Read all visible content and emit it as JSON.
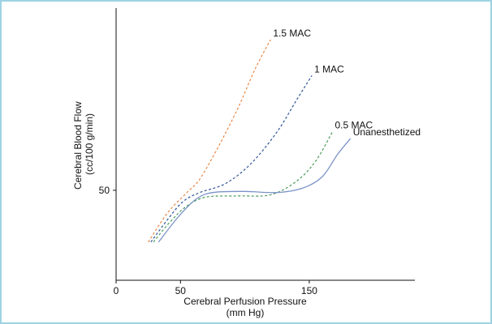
{
  "chart_data": {
    "type": "line",
    "title": "",
    "xlabel": "Cerebral Perfusion Pressure",
    "xlabel_units": "(mm Hg)",
    "ylabel": "Cerebral Blood Flow",
    "ylabel_units": "(cc/100 g/min)",
    "xlim": [
      0,
      232
    ],
    "ylim": [
      10,
      131
    ],
    "x_ticks": [
      0,
      50,
      150
    ],
    "x_tick_labels": [
      "0",
      "50",
      "150"
    ],
    "y_ticks": [
      50
    ],
    "y_tick_labels": [
      "50"
    ],
    "grid": false,
    "legend": "inline labels at line ends",
    "series": [
      {
        "name": "1.5 MAC",
        "color": "#e8874a",
        "dash": "dashed",
        "points": [
          [
            25,
            27
          ],
          [
            40,
            40
          ],
          [
            55,
            49
          ],
          [
            65,
            55
          ],
          [
            80,
            70
          ],
          [
            95,
            87
          ],
          [
            108,
            104
          ],
          [
            120,
            117
          ]
        ]
      },
      {
        "name": "1 MAC",
        "color": "#2f5597",
        "dash": "dashed",
        "points": [
          [
            27,
            27
          ],
          [
            40,
            37
          ],
          [
            52,
            45
          ],
          [
            65,
            49
          ],
          [
            85,
            53
          ],
          [
            105,
            62
          ],
          [
            125,
            76
          ],
          [
            140,
            90
          ],
          [
            152,
            101
          ]
        ]
      },
      {
        "name": "0.5 MAC",
        "color": "#4a9a5a",
        "dash": "dashed",
        "points": [
          [
            29,
            27
          ],
          [
            42,
            36
          ],
          [
            55,
            43
          ],
          [
            70,
            47
          ],
          [
            95,
            47.5
          ],
          [
            120,
            48
          ],
          [
            140,
            54
          ],
          [
            155,
            63
          ],
          [
            168,
            76
          ]
        ]
      },
      {
        "name": "Unanesthetized",
        "color": "#7b93c8",
        "dash": "solid",
        "points": [
          [
            33,
            27
          ],
          [
            48,
            38
          ],
          [
            62,
            46
          ],
          [
            75,
            49
          ],
          [
            100,
            49.5
          ],
          [
            125,
            49
          ],
          [
            145,
            51
          ],
          [
            160,
            56
          ],
          [
            172,
            66
          ],
          [
            182,
            73
          ]
        ]
      }
    ]
  }
}
